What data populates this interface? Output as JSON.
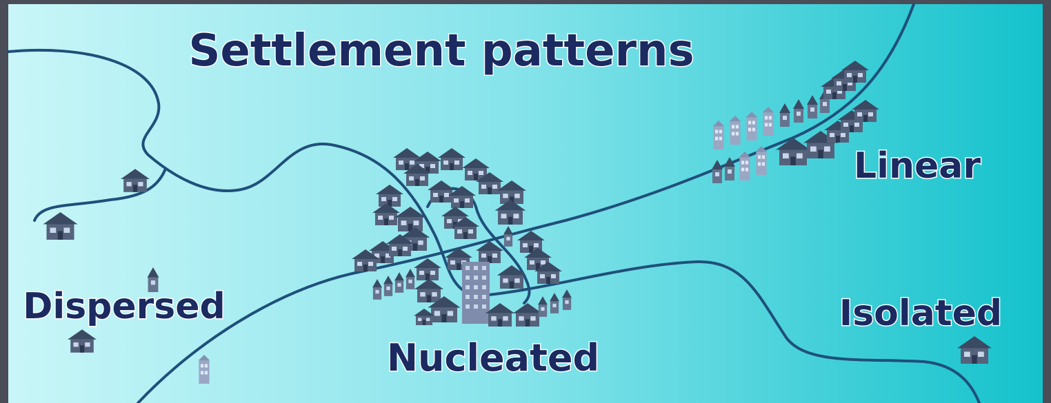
{
  "title": "Settlement patterns",
  "labels": {
    "dispersed": "Dispersed",
    "nucleated": "Nucleated",
    "linear": "Linear",
    "isolated": "Isolated"
  }
}
